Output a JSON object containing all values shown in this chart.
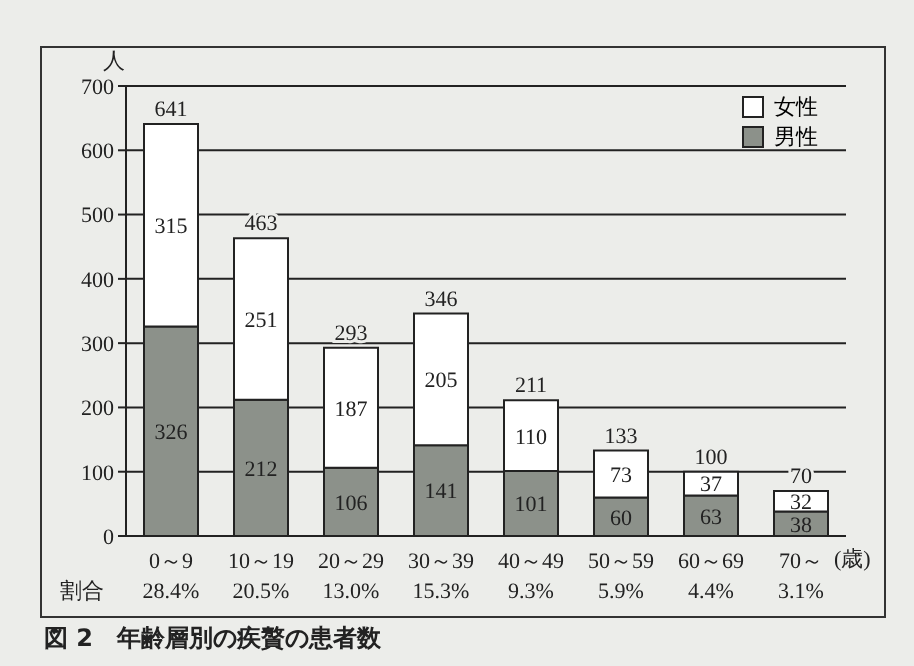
{
  "chart_data": {
    "type": "bar",
    "title": "図 2　年齢層別の疾贅の患者数",
    "ylabel": "人",
    "xlabel": "(歳)",
    "categories": [
      "0～9",
      "10～19",
      "20～29",
      "30～39",
      "40～49",
      "50～59",
      "60～69",
      "70～"
    ],
    "stacked": true,
    "series": [
      {
        "name": "男性",
        "color": "#8c918a",
        "values": [
          326,
          212,
          106,
          141,
          101,
          60,
          63,
          38
        ]
      },
      {
        "name": "女性",
        "color": "#ffffff",
        "values": [
          315,
          251,
          187,
          205,
          110,
          73,
          37,
          32
        ]
      }
    ],
    "data_labels": true,
    "totals": [
      "641",
      "463",
      "293",
      "346",
      "211",
      "133",
      "100",
      "70"
    ],
    "ylim": [
      0,
      700
    ],
    "yticks": [
      0,
      100,
      200,
      300,
      400,
      500,
      600,
      700
    ],
    "grid": "y",
    "legend": "top right",
    "annotations": [
      "割合",
      "28.4%",
      "20.5%",
      "13.0%",
      "15.3%",
      "9.3%",
      "5.9%",
      "4.4%",
      "3.1%"
    ]
  }
}
